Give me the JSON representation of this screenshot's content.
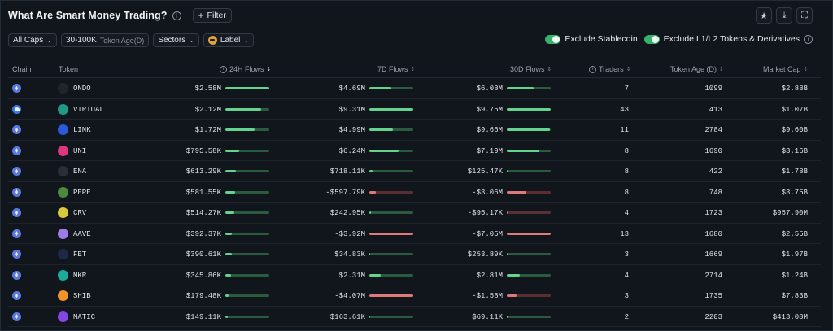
{
  "header": {
    "title": "What Are Smart Money Trading?",
    "filter_label": "Filter",
    "icons": [
      "star-icon",
      "download-icon",
      "fullscreen-icon"
    ]
  },
  "filters": {
    "caps": "All Caps",
    "token_age_value": "30-100K",
    "token_age_label": "Token Age(D)",
    "sectors": "Sectors",
    "label": "Label"
  },
  "toggles": {
    "stablecoin": "Exclude Stablecoin",
    "l1l2": "Exclude L1/L2 Tokens & Derivatives"
  },
  "columns": {
    "chain": "Chain",
    "token": "Token",
    "flows_24h": "24H Flows",
    "flows_7d": "7D Flows",
    "flows_30d": "30D Flows",
    "traders": "Traders",
    "token_age": "Token Age (D)",
    "market_cap": "Market Cap"
  },
  "colors": {
    "positive": "#63d38d",
    "negative": "#e07a7a",
    "toggle_on": "#37b26c"
  },
  "rows": [
    {
      "chain": "ethereum",
      "token": "ONDO",
      "icon_color": "#20252c",
      "f24": "$2.58M",
      "f24_bar": 1.0,
      "f7": "$4.69M",
      "f7_bar": 0.5,
      "f30": "$6.08M",
      "f30_bar": 0.62,
      "traders": "7",
      "age": "1099",
      "mcap": "$2.88B"
    },
    {
      "chain": "base",
      "token": "VIRTUAL",
      "icon_color": "#1f9a86",
      "f24": "$2.12M",
      "f24_bar": 0.82,
      "f7": "$9.31M",
      "f7_bar": 1.0,
      "f30": "$9.75M",
      "f30_bar": 1.0,
      "traders": "43",
      "age": "413",
      "mcap": "$1.07B"
    },
    {
      "chain": "ethereum",
      "token": "LINK",
      "icon_color": "#2a5ada",
      "f24": "$1.72M",
      "f24_bar": 0.67,
      "f7": "$4.99M",
      "f7_bar": 0.54,
      "f30": "$9.66M",
      "f30_bar": 0.99,
      "traders": "11",
      "age": "2784",
      "mcap": "$9.60B"
    },
    {
      "chain": "ethereum",
      "token": "UNI",
      "icon_color": "#e0357f",
      "f24": "$795.58K",
      "f24_bar": 0.31,
      "f7": "$6.24M",
      "f7_bar": 0.67,
      "f30": "$7.19M",
      "f30_bar": 0.74,
      "traders": "8",
      "age": "1690",
      "mcap": "$3.16B"
    },
    {
      "chain": "ethereum",
      "token": "ENA",
      "icon_color": "#2a2f37",
      "f24": "$613.29K",
      "f24_bar": 0.24,
      "f7": "$718.11K",
      "f7_bar": 0.08,
      "f30": "$125.47K",
      "f30_bar": 0.02,
      "traders": "8",
      "age": "422",
      "mcap": "$1.78B"
    },
    {
      "chain": "ethereum",
      "token": "PEPE",
      "icon_color": "#4b8a3c",
      "f24": "$581.55K",
      "f24_bar": 0.23,
      "f7": "-$597.79K",
      "f7_bar": -0.15,
      "f30": "-$3.06M",
      "f30_bar": -0.45,
      "traders": "8",
      "age": "748",
      "mcap": "$3.75B"
    },
    {
      "chain": "ethereum",
      "token": "CRV",
      "icon_color": "#d8c93a",
      "f24": "$514.27K",
      "f24_bar": 0.2,
      "f7": "$242.95K",
      "f7_bar": 0.03,
      "f30": "-$95.17K",
      "f30_bar": -0.02,
      "traders": "4",
      "age": "1723",
      "mcap": "$957.90M"
    },
    {
      "chain": "ethereum",
      "token": "AAVE",
      "icon_color": "#9f7be8",
      "f24": "$392.37K",
      "f24_bar": 0.15,
      "f7": "-$3.92M",
      "f7_bar": -1.0,
      "f30": "-$7.05M",
      "f30_bar": -1.0,
      "traders": "13",
      "age": "1680",
      "mcap": "$2.55B"
    },
    {
      "chain": "ethereum",
      "token": "FET",
      "icon_color": "#1c2a4a",
      "f24": "$390.61K",
      "f24_bar": 0.15,
      "f7": "$34.83K",
      "f7_bar": 0.01,
      "f30": "$253.89K",
      "f30_bar": 0.03,
      "traders": "3",
      "age": "1669",
      "mcap": "$1.97B"
    },
    {
      "chain": "ethereum",
      "token": "MKR",
      "icon_color": "#1aab9b",
      "f24": "$345.86K",
      "f24_bar": 0.13,
      "f7": "$2.31M",
      "f7_bar": 0.25,
      "f30": "$2.81M",
      "f30_bar": 0.29,
      "traders": "4",
      "age": "2714",
      "mcap": "$1.24B"
    },
    {
      "chain": "ethereum",
      "token": "SHIB",
      "icon_color": "#f0942a",
      "f24": "$179.48K",
      "f24_bar": 0.07,
      "f7": "-$4.07M",
      "f7_bar": -1.0,
      "f30": "-$1.58M",
      "f30_bar": -0.22,
      "traders": "3",
      "age": "1735",
      "mcap": "$7.83B"
    },
    {
      "chain": "ethereum",
      "token": "MATIC",
      "icon_color": "#8247e5",
      "f24": "$149.11K",
      "f24_bar": 0.06,
      "f7": "$163.61K",
      "f7_bar": 0.02,
      "f30": "$69.11K",
      "f30_bar": 0.01,
      "traders": "2",
      "age": "2203",
      "mcap": "$413.08M"
    }
  ]
}
